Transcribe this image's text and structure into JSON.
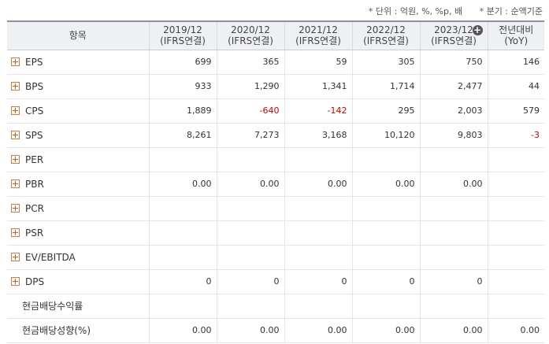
{
  "notes": {
    "unit": "* 단위 : 억원, %, %p, 배",
    "quarter": "* 분기 : 순액기준"
  },
  "header": {
    "item_label": "항목",
    "columns": [
      {
        "year": "2019/12",
        "sub": "(IFRS연결)"
      },
      {
        "year": "2020/12",
        "sub": "(IFRS연결)"
      },
      {
        "year": "2021/12",
        "sub": "(IFRS연결)"
      },
      {
        "year": "2022/12",
        "sub": "(IFRS연결)"
      },
      {
        "year": "2023/12",
        "sub": "(IFRS연결)"
      },
      {
        "year": "전년대비",
        "sub": "(YoY)"
      }
    ]
  },
  "rows": [
    {
      "label": "EPS",
      "expand": true,
      "values": [
        "699",
        "365",
        "59",
        "305",
        "750",
        "146"
      ]
    },
    {
      "label": "BPS",
      "expand": true,
      "values": [
        "933",
        "1,290",
        "1,341",
        "1,714",
        "2,477",
        "44"
      ]
    },
    {
      "label": "CPS",
      "expand": true,
      "values": [
        "1,889",
        "-640",
        "-142",
        "295",
        "2,003",
        "579"
      ]
    },
    {
      "label": "SPS",
      "expand": true,
      "values": [
        "8,261",
        "7,273",
        "3,168",
        "10,120",
        "9,803",
        "-3"
      ]
    },
    {
      "label": "PER",
      "expand": true,
      "values": [
        "",
        "",
        "",
        "",
        "",
        ""
      ]
    },
    {
      "label": "PBR",
      "expand": true,
      "values": [
        "0.00",
        "0.00",
        "0.00",
        "0.00",
        "0.00",
        ""
      ]
    },
    {
      "label": "PCR",
      "expand": true,
      "values": [
        "",
        "",
        "",
        "",
        "",
        ""
      ]
    },
    {
      "label": "PSR",
      "expand": true,
      "values": [
        "",
        "",
        "",
        "",
        "",
        ""
      ]
    },
    {
      "label": "EV/EBITDA",
      "expand": true,
      "values": [
        "",
        "",
        "",
        "",
        "",
        ""
      ]
    },
    {
      "label": "DPS",
      "expand": true,
      "values": [
        "0",
        "0",
        "0",
        "0",
        "0",
        ""
      ]
    },
    {
      "label": "현금배당수익률",
      "expand": false,
      "values": [
        "",
        "",
        "",
        "",
        "",
        ""
      ]
    },
    {
      "label": "현금배당성향(%)",
      "expand": false,
      "values": [
        "0.00",
        "0.00",
        "0.00",
        "0.00",
        "0.00",
        "0.00"
      ]
    }
  ],
  "colors": {
    "negative": "#d20000",
    "expand_icon": "#e2581b",
    "header_bg": "#eef0f4"
  },
  "icons": {
    "row_expand": "plus-square-icon",
    "add_column": "plus-circle-icon"
  }
}
